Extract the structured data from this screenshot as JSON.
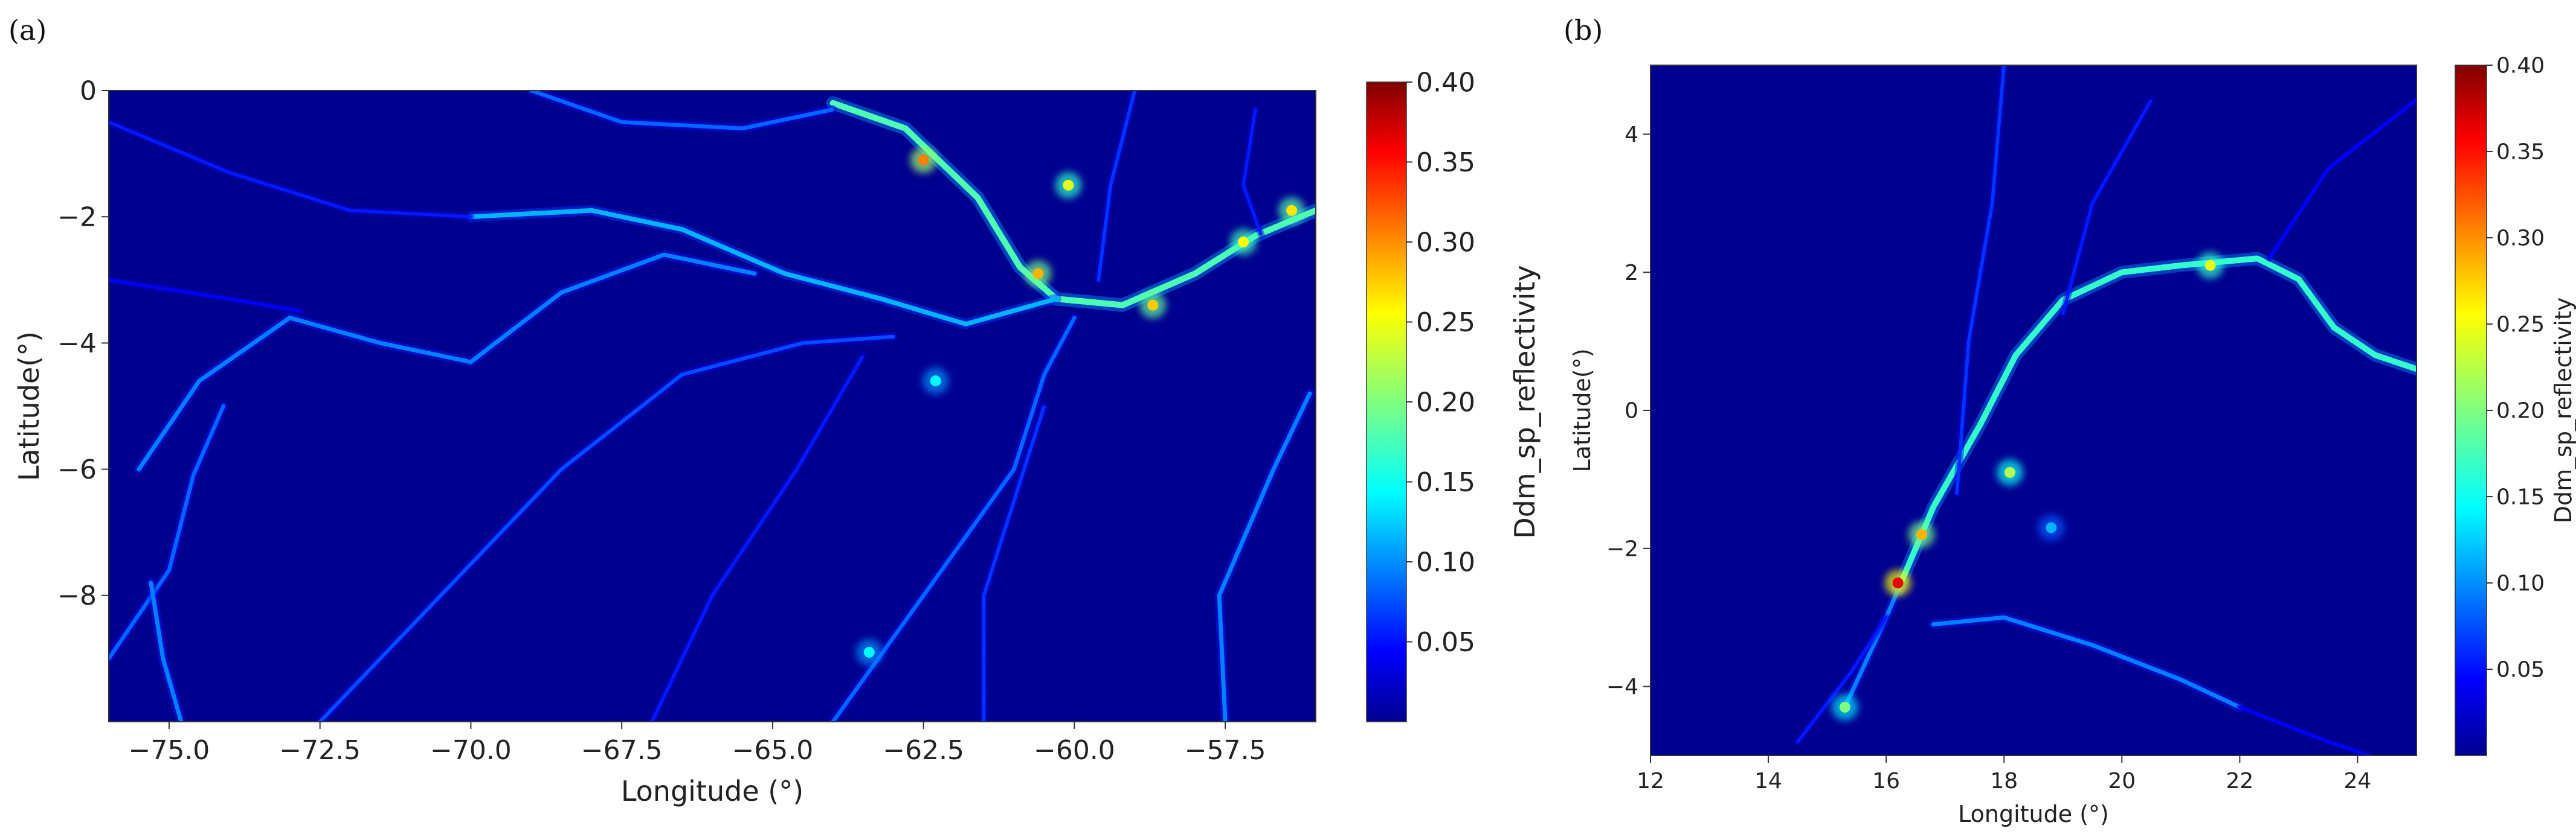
{
  "chart_data": [
    {
      "type": "heatmap",
      "panel_label": "(a)",
      "title": "",
      "xlabel": "Longitude (°)",
      "ylabel": "Latitude(°)",
      "xlim": [
        -76.0,
        -56.0
      ],
      "ylim": [
        -10.0,
        0.0
      ],
      "x_ticks": [
        -75.0,
        -72.5,
        -70.0,
        -67.5,
        -65.0,
        -62.5,
        -60.0,
        -57.5
      ],
      "x_tick_labels": [
        "−75.0",
        "−72.5",
        "−70.0",
        "−67.5",
        "−65.0",
        "−62.5",
        "−60.0",
        "−57.5"
      ],
      "y_ticks": [
        0,
        -2,
        -4,
        -6,
        -8
      ],
      "y_tick_labels": [
        "0",
        "−2",
        "−4",
        "−6",
        "−8"
      ],
      "grid": false,
      "colorbar": {
        "label": "Ddm_sp_reflectivity",
        "colormap": "jet",
        "range": [
          0.0,
          0.4
        ],
        "ticks": [
          0.05,
          0.1,
          0.15,
          0.2,
          0.25,
          0.3,
          0.35,
          0.4
        ],
        "tick_labels": [
          "0.05",
          "0.10",
          "0.15",
          "0.20",
          "0.25",
          "0.30",
          "0.35",
          "0.40"
        ]
      },
      "background_color": "#00008f",
      "rivers": [
        {
          "points": [
            [
              -64.0,
              -0.2
            ],
            [
              -62.8,
              -0.6
            ],
            [
              -61.6,
              -1.7
            ],
            [
              -60.9,
              -2.8
            ],
            [
              -60.3,
              -3.3
            ],
            [
              -59.2,
              -3.4
            ],
            [
              -58.0,
              -2.9
            ],
            [
              -57.0,
              -2.3
            ],
            [
              -56.0,
              -1.9
            ]
          ],
          "intensity": 0.18
        },
        {
          "points": [
            [
              -70.0,
              -2.0
            ],
            [
              -68.0,
              -1.9
            ],
            [
              -66.5,
              -2.2
            ],
            [
              -64.8,
              -2.9
            ],
            [
              -63.2,
              -3.3
            ],
            [
              -61.8,
              -3.7
            ],
            [
              -60.3,
              -3.3
            ]
          ],
          "intensity": 0.12
        },
        {
          "points": [
            [
              -75.5,
              -6.0
            ],
            [
              -74.5,
              -4.6
            ],
            [
              -73.0,
              -3.6
            ],
            [
              -71.5,
              -4.0
            ],
            [
              -70.0,
              -4.3
            ],
            [
              -68.5,
              -3.2
            ],
            [
              -66.8,
              -2.6
            ],
            [
              -65.3,
              -2.9
            ]
          ],
          "intensity": 0.1
        },
        {
          "points": [
            [
              -76.0,
              -9.0
            ],
            [
              -75.0,
              -7.6
            ],
            [
              -74.6,
              -6.1
            ],
            [
              -74.1,
              -5.0
            ]
          ],
          "intensity": 0.09
        },
        {
          "points": [
            [
              -75.3,
              -7.8
            ],
            [
              -75.1,
              -9.0
            ],
            [
              -74.8,
              -10.0
            ]
          ],
          "intensity": 0.1
        },
        {
          "points": [
            [
              -72.5,
              -10.0
            ],
            [
              -70.5,
              -8.0
            ],
            [
              -68.5,
              -6.0
            ],
            [
              -66.5,
              -4.5
            ],
            [
              -64.5,
              -4.0
            ],
            [
              -63.0,
              -3.9
            ]
          ],
          "intensity": 0.08
        },
        {
          "points": [
            [
              -64.0,
              -10.0
            ],
            [
              -62.5,
              -8.0
            ],
            [
              -61.0,
              -6.0
            ],
            [
              -60.5,
              -4.5
            ],
            [
              -60.0,
              -3.6
            ]
          ],
          "intensity": 0.09
        },
        {
          "points": [
            [
              -61.5,
              -10.0
            ],
            [
              -61.5,
              -8.0
            ],
            [
              -61.0,
              -6.5
            ],
            [
              -60.5,
              -5.0
            ]
          ],
          "intensity": 0.07
        },
        {
          "points": [
            [
              -57.5,
              -10.0
            ],
            [
              -57.6,
              -8.0
            ],
            [
              -56.7,
              -6.0
            ],
            [
              -56.1,
              -4.8
            ]
          ],
          "intensity": 0.1
        },
        {
          "points": [
            [
              -69.0,
              0.0
            ],
            [
              -67.5,
              -0.5
            ],
            [
              -65.5,
              -0.6
            ],
            [
              -64.0,
              -0.3
            ]
          ],
          "intensity": 0.09
        },
        {
          "points": [
            [
              -76.0,
              -0.5
            ],
            [
              -74.0,
              -1.3
            ],
            [
              -72.0,
              -1.9
            ],
            [
              -70.0,
              -2.0
            ]
          ],
          "intensity": 0.06
        },
        {
          "points": [
            [
              -59.0,
              0.0
            ],
            [
              -59.4,
              -1.5
            ],
            [
              -59.6,
              -3.0
            ]
          ],
          "intensity": 0.07
        },
        {
          "points": [
            [
              -57.0,
              -0.3
            ],
            [
              -57.2,
              -1.5
            ],
            [
              -56.9,
              -2.3
            ]
          ],
          "intensity": 0.06
        },
        {
          "points": [
            [
              -76.0,
              -3.0
            ],
            [
              -74.0,
              -3.3
            ],
            [
              -72.8,
              -3.5
            ]
          ],
          "intensity": 0.05
        },
        {
          "points": [
            [
              -67.0,
              -10.0
            ],
            [
              -66.0,
              -8.0
            ],
            [
              -64.6,
              -6.0
            ],
            [
              -63.5,
              -4.2
            ]
          ],
          "intensity": 0.06
        }
      ],
      "hotspots": [
        {
          "lon": -62.5,
          "lat": -1.1,
          "intensity": 0.3
        },
        {
          "lon": -60.6,
          "lat": -2.9,
          "intensity": 0.28
        },
        {
          "lon": -58.7,
          "lat": -3.4,
          "intensity": 0.27
        },
        {
          "lon": -57.2,
          "lat": -2.4,
          "intensity": 0.25
        },
        {
          "lon": -56.4,
          "lat": -1.9,
          "intensity": 0.26
        },
        {
          "lon": -60.1,
          "lat": -1.5,
          "intensity": 0.24
        },
        {
          "lon": -62.3,
          "lat": -4.6,
          "intensity": 0.15
        },
        {
          "lon": -63.4,
          "lat": -8.9,
          "intensity": 0.15
        }
      ]
    },
    {
      "type": "heatmap",
      "panel_label": "(b)",
      "title": "",
      "xlabel": "Longitude (°)",
      "ylabel": "Latitude(°)",
      "xlim": [
        12.0,
        25.0
      ],
      "ylim": [
        -5.0,
        5.0
      ],
      "x_ticks": [
        12,
        14,
        16,
        18,
        20,
        22,
        24
      ],
      "x_tick_labels": [
        "12",
        "14",
        "16",
        "18",
        "20",
        "22",
        "24"
      ],
      "y_ticks": [
        4,
        2,
        0,
        -2,
        -4
      ],
      "y_tick_labels": [
        "4",
        "2",
        "0",
        "−2",
        "−4"
      ],
      "grid": false,
      "colorbar": {
        "label": "Ddm_sp_reflectivity",
        "colormap": "jet",
        "range": [
          0.0,
          0.4
        ],
        "ticks": [
          0.05,
          0.1,
          0.15,
          0.2,
          0.25,
          0.3,
          0.35,
          0.4
        ],
        "tick_labels": [
          "0.05",
          "0.10",
          "0.15",
          "0.20",
          "0.25",
          "0.30",
          "0.35",
          "0.40"
        ]
      },
      "background_color": "#00008f",
      "rivers": [
        {
          "points": [
            [
              16.2,
              -2.6
            ],
            [
              16.8,
              -1.4
            ],
            [
              17.6,
              -0.2
            ],
            [
              18.2,
              0.8
            ],
            [
              19.0,
              1.6
            ],
            [
              20.0,
              2.0
            ],
            [
              21.0,
              2.1
            ],
            [
              22.3,
              2.2
            ],
            [
              23.0,
              1.9
            ],
            [
              23.6,
              1.2
            ],
            [
              24.3,
              0.8
            ],
            [
              25.0,
              0.6
            ]
          ],
          "intensity": 0.17
        },
        {
          "points": [
            [
              15.3,
              -4.3
            ],
            [
              16.0,
              -3.0
            ],
            [
              16.2,
              -2.6
            ]
          ],
          "intensity": 0.1
        },
        {
          "points": [
            [
              16.8,
              -3.1
            ],
            [
              18.0,
              -3.0
            ],
            [
              19.5,
              -3.4
            ],
            [
              21.0,
              -3.9
            ],
            [
              22.0,
              -4.3
            ]
          ],
          "intensity": 0.1
        },
        {
          "points": [
            [
              17.2,
              -1.2
            ],
            [
              17.4,
              1.0
            ],
            [
              17.8,
              3.0
            ],
            [
              18.0,
              5.0
            ]
          ],
          "intensity": 0.07
        },
        {
          "points": [
            [
              22.0,
              -4.3
            ],
            [
              23.5,
              -4.8
            ],
            [
              24.2,
              -5.0
            ]
          ],
          "intensity": 0.05
        },
        {
          "points": [
            [
              19.0,
              1.4
            ],
            [
              19.5,
              3.0
            ],
            [
              20.5,
              4.5
            ]
          ],
          "intensity": 0.06
        },
        {
          "points": [
            [
              22.5,
              2.2
            ],
            [
              23.5,
              3.5
            ],
            [
              25.0,
              4.5
            ]
          ],
          "intensity": 0.05
        },
        {
          "points": [
            [
              14.5,
              -4.8
            ],
            [
              15.4,
              -3.8
            ],
            [
              16.0,
              -3.0
            ]
          ],
          "intensity": 0.06
        }
      ],
      "hotspots": [
        {
          "lon": 16.2,
          "lat": -2.5,
          "intensity": 0.36
        },
        {
          "lon": 16.6,
          "lat": -1.8,
          "intensity": 0.28
        },
        {
          "lon": 18.1,
          "lat": -0.9,
          "intensity": 0.22
        },
        {
          "lon": 15.3,
          "lat": -4.3,
          "intensity": 0.2
        },
        {
          "lon": 21.5,
          "lat": 2.1,
          "intensity": 0.24
        },
        {
          "lon": 18.8,
          "lat": -1.7,
          "intensity": 0.12
        }
      ]
    }
  ]
}
